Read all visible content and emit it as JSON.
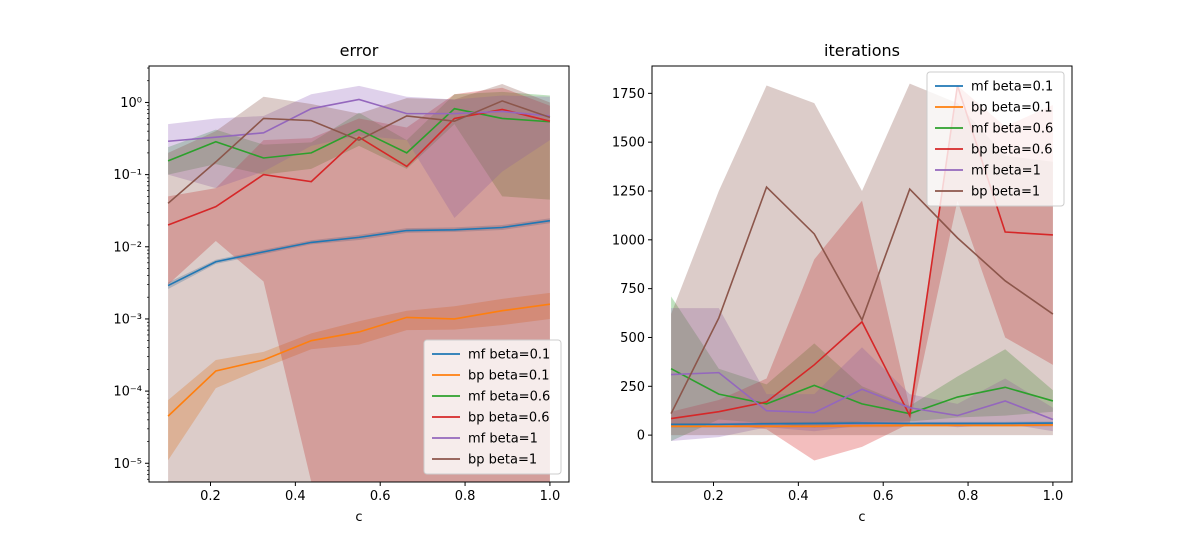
{
  "chart_data": [
    {
      "type": "line",
      "title": "error",
      "xlabel": "c",
      "ylabel": "",
      "yscale": "log",
      "xlim": [
        0.055,
        1.045
      ],
      "ylim": [
        5.5e-06,
        3.2
      ],
      "xticks": [
        0.2,
        0.4,
        0.6,
        0.8,
        1.0
      ],
      "xtick_labels": [
        "0.2",
        "0.4",
        "0.6",
        "0.8",
        "1.0"
      ],
      "yticks": [
        1e-05,
        0.0001,
        0.001,
        0.01,
        0.1,
        1
      ],
      "ytick_labels": [
        "10⁻⁵",
        "10⁻⁴",
        "10⁻³",
        "10⁻²",
        "10⁻¹",
        "10⁰"
      ],
      "legend_position": "lower-right",
      "grid": false,
      "x": [
        0.1,
        0.2125,
        0.325,
        0.4375,
        0.55,
        0.6625,
        0.775,
        0.8875,
        1.0
      ],
      "series": [
        {
          "name": "mf beta=0.1",
          "color": "#1f77b4",
          "values": [
            0.0029,
            0.0062,
            0.0085,
            0.0115,
            0.0135,
            0.0168,
            0.0172,
            0.0185,
            0.023
          ],
          "lower": [
            0.0026,
            0.0058,
            0.0079,
            0.0108,
            0.0124,
            0.0156,
            0.016,
            0.0171,
            0.0212
          ],
          "upper": [
            0.0032,
            0.0066,
            0.0091,
            0.0123,
            0.0146,
            0.0181,
            0.0186,
            0.02,
            0.0249
          ]
        },
        {
          "name": "bp beta=0.1",
          "color": "#ff7f0e",
          "values": [
            4.5e-05,
            0.00019,
            0.00027,
            0.0005,
            0.00066,
            0.00105,
            0.001,
            0.0013,
            0.0016
          ],
          "lower": [
            1.1e-05,
            0.00011,
            0.00021,
            0.00038,
            0.00044,
            0.0007,
            0.00071,
            0.00082,
            0.001
          ],
          "upper": [
            7.5e-05,
            0.00027,
            0.00035,
            0.00063,
            0.00093,
            0.0013,
            0.0015,
            0.0019,
            0.0023
          ]
        },
        {
          "name": "mf beta=0.6",
          "color": "#2ca02c",
          "values": [
            0.155,
            0.285,
            0.17,
            0.2,
            0.42,
            0.2,
            0.82,
            0.6,
            0.54
          ],
          "lower": [
            0.1,
            0.14,
            0.1,
            0.12,
            0.25,
            0.12,
            0.5,
            0.05,
            0.045
          ],
          "upper": [
            0.24,
            0.42,
            0.26,
            0.28,
            0.72,
            0.3,
            1.3,
            1.4,
            1.25
          ]
        },
        {
          "name": "bp beta=0.6",
          "color": "#d62728",
          "values": [
            0.02,
            0.036,
            0.1,
            0.08,
            0.33,
            0.13,
            0.6,
            0.8,
            0.55
          ],
          "lower": [
            0.003,
            0.012,
            0.0033,
            5.5e-06,
            5.5e-06,
            5.5e-06,
            5.5e-06,
            5.5e-06,
            5.5e-06
          ],
          "upper": [
            0.05,
            0.065,
            0.3,
            0.32,
            0.6,
            0.45,
            1.3,
            1.6,
            0.9
          ]
        },
        {
          "name": "mf beta=1",
          "color": "#9467bd",
          "values": [
            0.29,
            0.33,
            0.38,
            0.82,
            1.1,
            0.7,
            0.7,
            0.75,
            0.65
          ],
          "lower": [
            0.1,
            0.065,
            0.11,
            0.25,
            0.35,
            0.3,
            0.025,
            0.11,
            0.3
          ],
          "upper": [
            0.5,
            0.6,
            0.65,
            1.3,
            1.7,
            1.2,
            1.1,
            1.25,
            1.2
          ]
        },
        {
          "name": "bp beta=1",
          "color": "#8c564b",
          "values": [
            0.04,
            0.15,
            0.6,
            0.56,
            0.3,
            0.65,
            0.55,
            1.05,
            0.62
          ],
          "lower": [
            5.5e-06,
            5.5e-06,
            5.5e-06,
            5.5e-06,
            5.5e-06,
            5.5e-06,
            5.5e-06,
            5.5e-06,
            5.5e-06
          ],
          "upper": [
            0.2,
            0.4,
            1.2,
            0.95,
            0.7,
            1.15,
            1.1,
            1.8,
            1.0
          ]
        }
      ]
    },
    {
      "type": "line",
      "title": "iterations",
      "xlabel": "c",
      "ylabel": "",
      "xlim": [
        0.055,
        1.045
      ],
      "ylim": [
        -240,
        1890
      ],
      "xticks": [
        0.2,
        0.4,
        0.6,
        0.8,
        1.0
      ],
      "xtick_labels": [
        "0.2",
        "0.4",
        "0.6",
        "0.8",
        "1.0"
      ],
      "yticks": [
        0,
        250,
        500,
        750,
        1000,
        1250,
        1500,
        1750
      ],
      "ytick_labels": [
        "0",
        "250",
        "500",
        "750",
        "1000",
        "1250",
        "1500",
        "1750"
      ],
      "legend_position": "top-right",
      "grid": false,
      "x": [
        0.1,
        0.2125,
        0.325,
        0.4375,
        0.55,
        0.6625,
        0.775,
        0.8875,
        1.0
      ],
      "series": [
        {
          "name": "mf beta=0.1",
          "color": "#1f77b4",
          "values": [
            55,
            55,
            58,
            60,
            62,
            60,
            60,
            60,
            62
          ],
          "lower": [
            48,
            48,
            50,
            52,
            54,
            52,
            52,
            52,
            54
          ],
          "upper": [
            62,
            62,
            66,
            68,
            70,
            68,
            68,
            68,
            70
          ]
        },
        {
          "name": "bp beta=0.1",
          "color": "#ff7f0e",
          "values": [
            45,
            45,
            45,
            45,
            48,
            50,
            50,
            50,
            52
          ],
          "lower": [
            38,
            38,
            38,
            38,
            40,
            42,
            42,
            42,
            44
          ],
          "upper": [
            52,
            52,
            52,
            52,
            56,
            58,
            58,
            58,
            60
          ]
        },
        {
          "name": "mf beta=0.6",
          "color": "#2ca02c",
          "values": [
            340,
            210,
            160,
            255,
            160,
            110,
            195,
            245,
            175
          ],
          "lower": [
            -30,
            80,
            60,
            40,
            70,
            70,
            90,
            100,
            120
          ],
          "upper": [
            710,
            340,
            260,
            470,
            250,
            150,
            300,
            440,
            230
          ]
        },
        {
          "name": "bp beta=0.6",
          "color": "#d62728",
          "values": [
            85,
            120,
            170,
            360,
            580,
            100,
            1790,
            1040,
            1025
          ],
          "lower": [
            50,
            60,
            30,
            -130,
            -60,
            60,
            1200,
            500,
            360
          ],
          "upper": [
            120,
            180,
            290,
            900,
            1200,
            140,
            1790,
            1580,
            1690
          ]
        },
        {
          "name": "mf beta=1",
          "color": "#9467bd",
          "values": [
            310,
            320,
            125,
            115,
            235,
            140,
            100,
            175,
            80
          ],
          "lower": [
            -30,
            -10,
            40,
            20,
            50,
            70,
            40,
            60,
            20
          ],
          "upper": [
            650,
            650,
            210,
            210,
            450,
            210,
            160,
            290,
            140
          ]
        },
        {
          "name": "bp beta=1",
          "color": "#8c564b",
          "values": [
            110,
            600,
            1270,
            1030,
            590,
            1260,
            1010,
            790,
            620
          ],
          "lower": [
            0,
            0,
            0,
            0,
            0,
            0,
            0,
            0,
            0
          ],
          "upper": [
            620,
            1250,
            1790,
            1700,
            1250,
            1800,
            1700,
            1430,
            1400
          ]
        }
      ]
    }
  ]
}
